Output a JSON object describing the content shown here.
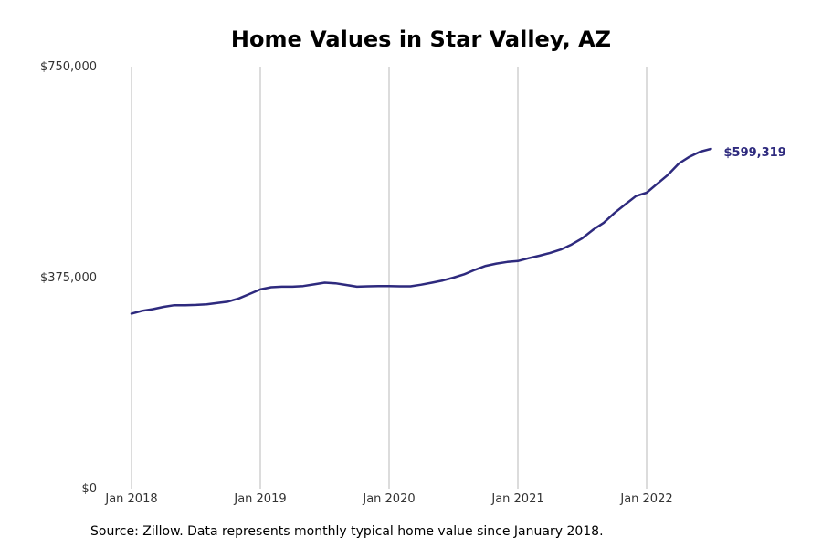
{
  "chart_data": {
    "type": "line",
    "title": "Home Values in Star Valley, AZ",
    "xlabel": "",
    "ylabel": "",
    "ylim": [
      0,
      750000
    ],
    "y_ticks": [
      0,
      375000,
      750000
    ],
    "y_tick_labels": [
      "$0",
      "$375,000",
      "$750,000"
    ],
    "x_ticks": [
      "2018-01",
      "2019-01",
      "2020-01",
      "2021-01",
      "2022-01"
    ],
    "x_tick_labels": [
      "Jan 2018",
      "Jan 2019",
      "Jan 2020",
      "Jan 2021",
      "Jan 2022"
    ],
    "grid": "vertical",
    "line_color": "#2e2a7e",
    "end_label": "$599,319",
    "series": [
      {
        "x": [
          "2018-01",
          "2018-02",
          "2018-03",
          "2018-04",
          "2018-05",
          "2018-06",
          "2018-07",
          "2018-08",
          "2018-09",
          "2018-10",
          "2018-11",
          "2018-12",
          "2019-01",
          "2019-02",
          "2019-03",
          "2019-04",
          "2019-05",
          "2019-06",
          "2019-07",
          "2019-08",
          "2019-09",
          "2019-10",
          "2019-11",
          "2019-12",
          "2020-01",
          "2020-02",
          "2020-03",
          "2020-04",
          "2020-05",
          "2020-06",
          "2020-07",
          "2020-08",
          "2020-09",
          "2020-10",
          "2020-11",
          "2020-12",
          "2021-01",
          "2021-02",
          "2021-03",
          "2021-04",
          "2021-05",
          "2021-06",
          "2021-07",
          "2021-08",
          "2021-09",
          "2021-10",
          "2021-11",
          "2021-12",
          "2022-01",
          "2022-02",
          "2022-03",
          "2022-04",
          "2022-05",
          "2022-06",
          "2022-07"
        ],
        "values": [
          311000,
          316000,
          319000,
          323000,
          326000,
          326000,
          326500,
          327500,
          330000,
          332500,
          338000,
          346000,
          354000,
          358000,
          359000,
          359000,
          360000,
          363000,
          366000,
          365000,
          362000,
          359000,
          359500,
          360000,
          360000,
          359500,
          359500,
          362500,
          366000,
          370000,
          375000,
          381000,
          389000,
          396000,
          400000,
          403000,
          404500,
          409500,
          414000,
          419000,
          425000,
          434000,
          445000,
          460000,
          472500,
          490000,
          505000,
          520000,
          526000,
          542000,
          558000,
          578000,
          590000,
          599000,
          604000
        ]
      }
    ]
  },
  "source_text": "Source: Zillow. Data represents monthly typical home value since January 2018."
}
